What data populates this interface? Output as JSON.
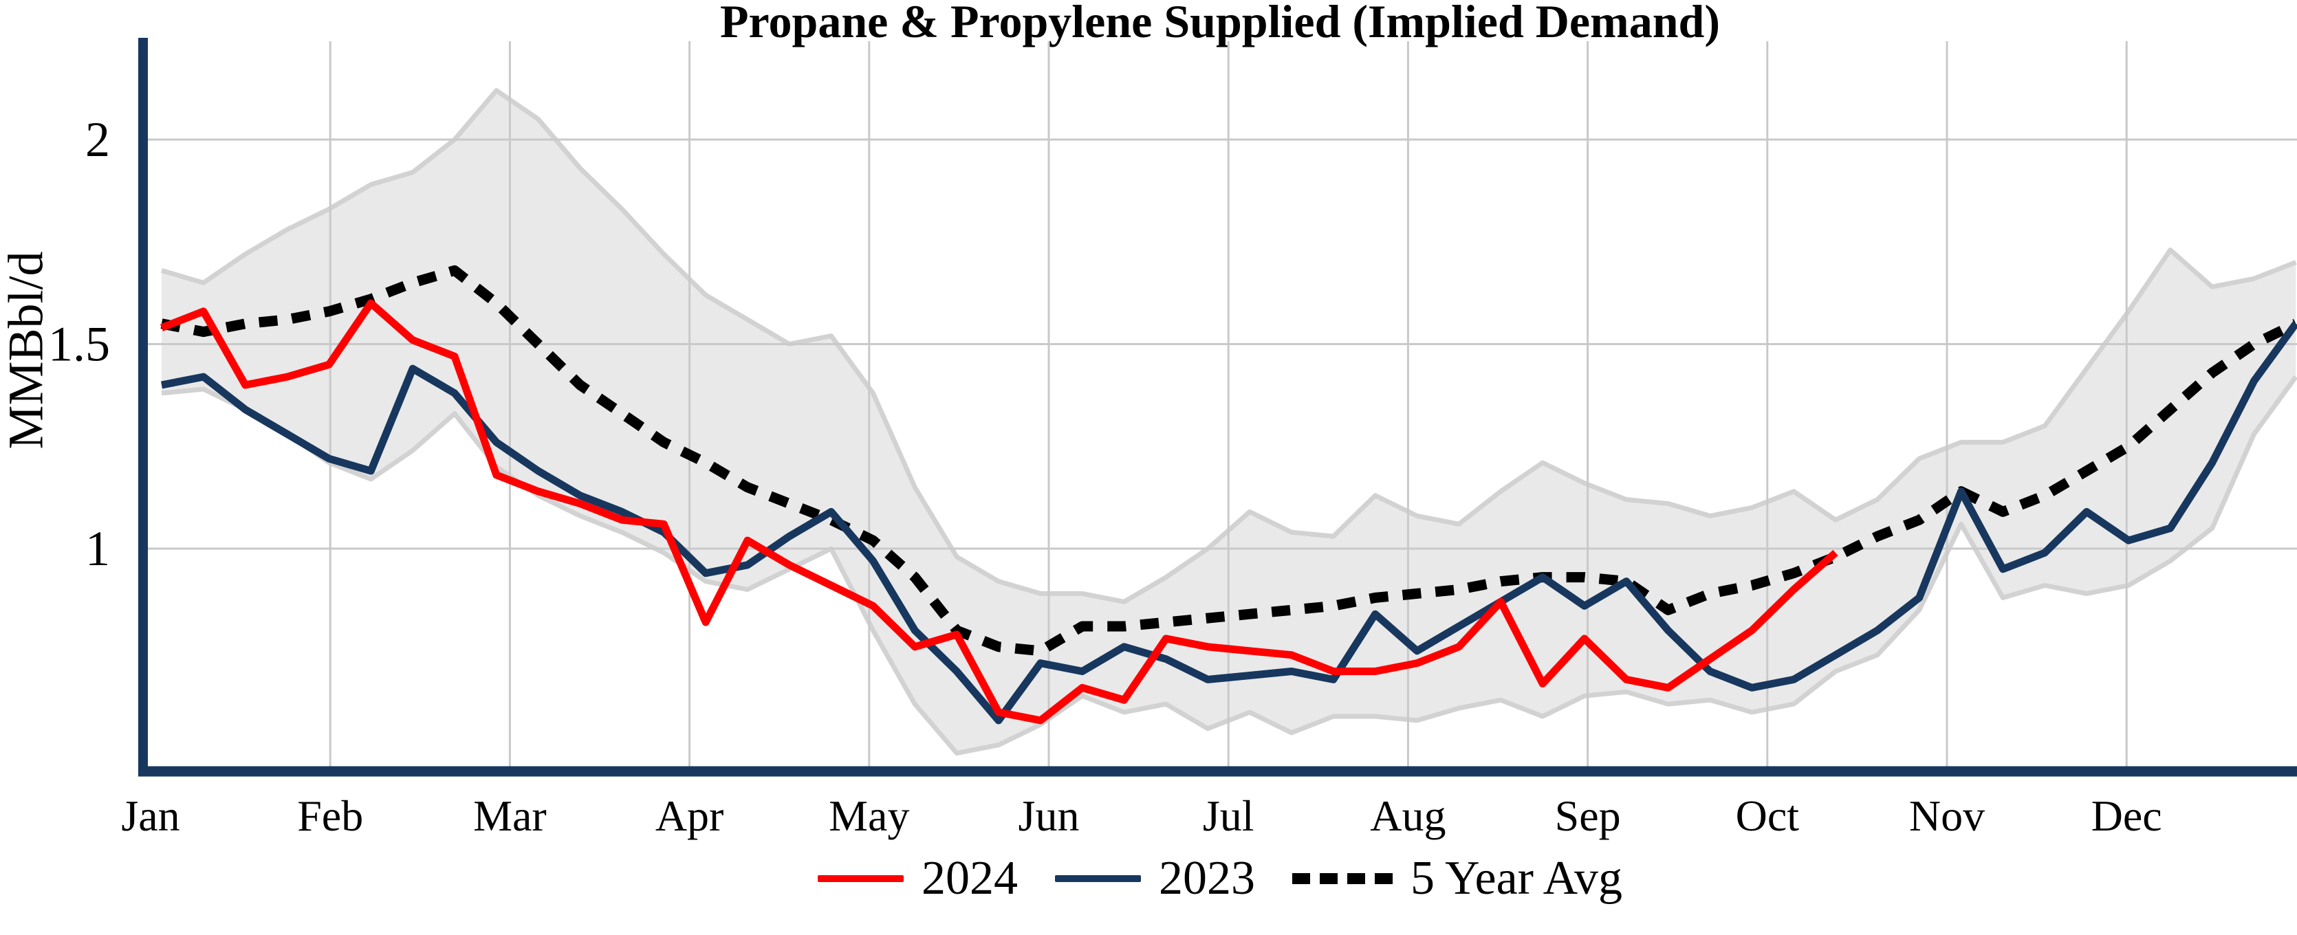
{
  "title": "Propane & Propylene Supplied (Implied Demand)",
  "y_axis_label": "MMBbl/d",
  "legend": {
    "series_2024": "2024",
    "series_2023": "2023",
    "series_avg": "5 Year Avg"
  },
  "colors": {
    "series_2024": "#fe0000",
    "series_2023": "#17375e",
    "series_avg": "#000000",
    "band_fill": "#e9e9e9",
    "band_edge": "#d2d2d2",
    "gridline": "#c9c9c9",
    "axis": "#17375e",
    "text": "#000000",
    "background": "#ffffff"
  },
  "chart_data": {
    "type": "line",
    "title": "Propane & Propylene Supplied (Implied Demand)",
    "xlabel": "",
    "ylabel": "MMBbl/d",
    "x_unit": "weekly (52 weeks, Jan–Dec)",
    "month_labels": [
      "Jan",
      "Feb",
      "Mar",
      "Apr",
      "May",
      "Jun",
      "Jul",
      "Aug",
      "Sep",
      "Oct",
      "Nov",
      "Dec"
    ],
    "y_ticks": [
      1,
      1.5,
      2
    ],
    "ylim": [
      0.42,
      2.22
    ],
    "grid": "both",
    "legend_position": "bottom-center",
    "band": {
      "name": "5-year range",
      "upper": [
        1.68,
        1.65,
        1.72,
        1.78,
        1.83,
        1.89,
        1.92,
        2.0,
        2.12,
        2.05,
        1.93,
        1.83,
        1.72,
        1.62,
        1.56,
        1.5,
        1.52,
        1.38,
        1.15,
        0.98,
        0.92,
        0.89,
        0.89,
        0.87,
        0.93,
        1.0,
        1.09,
        1.04,
        1.03,
        1.13,
        1.08,
        1.06,
        1.14,
        1.21,
        1.16,
        1.12,
        1.11,
        1.08,
        1.1,
        1.14,
        1.07,
        1.12,
        1.22,
        1.26,
        1.26,
        1.3,
        1.44,
        1.58,
        1.73,
        1.64,
        1.66,
        1.7
      ],
      "lower": [
        1.38,
        1.39,
        1.34,
        1.28,
        1.21,
        1.17,
        1.24,
        1.33,
        1.2,
        1.13,
        1.08,
        1.04,
        0.99,
        0.92,
        0.9,
        0.95,
        1.0,
        0.8,
        0.62,
        0.5,
        0.52,
        0.57,
        0.64,
        0.6,
        0.62,
        0.56,
        0.6,
        0.55,
        0.59,
        0.59,
        0.58,
        0.61,
        0.63,
        0.59,
        0.64,
        0.65,
        0.62,
        0.63,
        0.6,
        0.62,
        0.7,
        0.74,
        0.85,
        1.06,
        0.88,
        0.91,
        0.89,
        0.91,
        0.97,
        1.05,
        1.28,
        1.42
      ]
    },
    "series": [
      {
        "name": "2024",
        "color": "#fe0000",
        "style": "solid",
        "values": [
          1.54,
          1.58,
          1.4,
          1.42,
          1.45,
          1.6,
          1.51,
          1.47,
          1.18,
          1.14,
          1.11,
          1.07,
          1.06,
          0.82,
          1.02,
          0.96,
          0.91,
          0.86,
          0.76,
          0.79,
          0.6,
          0.58,
          0.66,
          0.63,
          0.78,
          0.76,
          0.75,
          0.74,
          0.7,
          0.7,
          0.72,
          0.76,
          0.87,
          0.67,
          0.78,
          0.68,
          0.66,
          0.73,
          0.8,
          0.9,
          0.99
        ]
      },
      {
        "name": "2023",
        "color": "#17375e",
        "style": "solid",
        "values": [
          1.4,
          1.42,
          1.34,
          1.28,
          1.22,
          1.19,
          1.44,
          1.38,
          1.26,
          1.19,
          1.13,
          1.09,
          1.04,
          0.94,
          0.96,
          1.03,
          1.09,
          0.97,
          0.8,
          0.7,
          0.58,
          0.72,
          0.7,
          0.76,
          0.73,
          0.68,
          0.69,
          0.7,
          0.68,
          0.84,
          0.75,
          0.81,
          0.87,
          0.93,
          0.86,
          0.92,
          0.8,
          0.7,
          0.66,
          0.68,
          0.74,
          0.8,
          0.88,
          1.14,
          0.95,
          0.99,
          1.09,
          1.02,
          1.05,
          1.21,
          1.41,
          1.55
        ]
      },
      {
        "name": "5 Year Avg",
        "color": "#000000",
        "style": "dotted",
        "values": [
          1.55,
          1.53,
          1.55,
          1.56,
          1.58,
          1.61,
          1.65,
          1.68,
          1.6,
          1.5,
          1.4,
          1.33,
          1.26,
          1.21,
          1.15,
          1.11,
          1.07,
          1.02,
          0.93,
          0.8,
          0.76,
          0.75,
          0.81,
          0.81,
          0.82,
          0.83,
          0.84,
          0.85,
          0.86,
          0.88,
          0.89,
          0.9,
          0.92,
          0.93,
          0.93,
          0.92,
          0.85,
          0.89,
          0.91,
          0.94,
          0.98,
          1.03,
          1.07,
          1.14,
          1.09,
          1.13,
          1.19,
          1.25,
          1.34,
          1.43,
          1.5,
          1.55
        ]
      }
    ]
  }
}
